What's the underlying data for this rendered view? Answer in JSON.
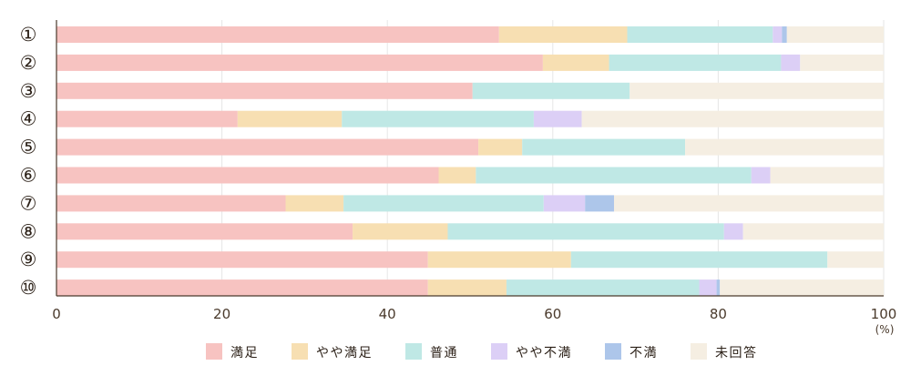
{
  "chart_data": {
    "type": "bar",
    "orientation": "horizontal",
    "stacked": true,
    "categories": [
      "①",
      "②",
      "③",
      "④",
      "⑤",
      "⑥",
      "⑦",
      "⑧",
      "⑨",
      "⑩"
    ],
    "series": [
      {
        "name": "満足",
        "color": "#f7c3c1",
        "values": [
          53.5,
          58.8,
          50.3,
          21.9,
          51.0,
          46.2,
          27.7,
          35.8,
          44.9,
          44.9
        ]
      },
      {
        "name": "やや満足",
        "color": "#f7dfb2",
        "values": [
          15.5,
          8.0,
          0.0,
          12.6,
          5.3,
          4.5,
          7.0,
          11.5,
          17.3,
          9.5
        ]
      },
      {
        "name": "普通",
        "color": "#bfe8e5",
        "values": [
          17.6,
          20.8,
          19.0,
          23.2,
          19.7,
          33.3,
          24.2,
          33.4,
          31.0,
          23.3
        ]
      },
      {
        "name": "やや不満",
        "color": "#dccff6",
        "values": [
          1.1,
          2.3,
          0.0,
          5.8,
          0.0,
          2.3,
          5.0,
          2.3,
          0.0,
          2.1
        ]
      },
      {
        "name": "不満",
        "color": "#adc6ea",
        "values": [
          0.6,
          0.0,
          0.0,
          0.0,
          0.0,
          0.0,
          3.5,
          0.0,
          0.0,
          0.4
        ]
      },
      {
        "name": "未回答",
        "color": "#f5eee2",
        "values": [
          11.7,
          10.1,
          30.7,
          36.5,
          24.0,
          13.7,
          32.6,
          17.0,
          6.8,
          19.8
        ]
      }
    ],
    "xlim": [
      0,
      100
    ],
    "xticks": [
      "0",
      "20",
      "40",
      "60",
      "80",
      "100"
    ],
    "unit_label": "(%)",
    "grid": true,
    "legend_position": "bottom",
    "title": "",
    "xlabel": "",
    "ylabel": ""
  }
}
